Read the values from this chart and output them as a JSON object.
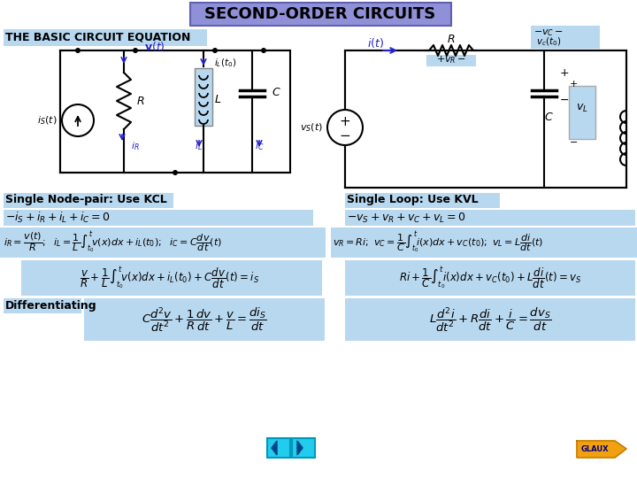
{
  "title": "SECOND-ORDER CIRCUITS",
  "bg_color": "#ffffff",
  "header_label": "THE BASIC CIRCUIT EQUATION",
  "header_bg": "#b8d8f0",
  "left_label": "Single Node-pair: Use KCL",
  "right_label": "Single Loop: Use KVL",
  "label_bg": "#b8d8f0",
  "eq_bg": "#b8d8f0",
  "blue_text": "#2222cc",
  "title_bg": "#9090d8",
  "title_border": "#6060b0"
}
